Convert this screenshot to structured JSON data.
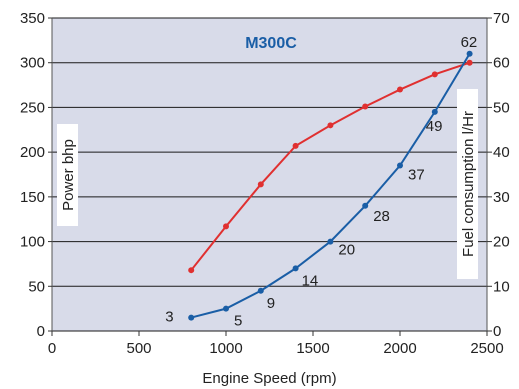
{
  "chart_data": {
    "type": "line",
    "title": "M300C",
    "xlabel": "Engine Speed (rpm)",
    "ylabel": "Power bhp",
    "y2label": "Fuel consumption l/Hr",
    "xlim": [
      0,
      2500
    ],
    "ylim": [
      0,
      350
    ],
    "y2lim": [
      0,
      70
    ],
    "x_ticks": [
      "0",
      "500",
      "1000",
      "1500",
      "2000",
      "2500"
    ],
    "y_ticks": [
      "0",
      "50",
      "100",
      "150",
      "200",
      "250",
      "300",
      "350"
    ],
    "y2_ticks": [
      "0",
      "10",
      "20",
      "30",
      "40",
      "50",
      "60",
      "70"
    ],
    "grid": "horizontal",
    "series": [
      {
        "axis": "left",
        "color": "#e03030",
        "x": [
          800,
          1000,
          1200,
          1400,
          1600,
          1800,
          2000,
          2200,
          2400
        ],
        "values": [
          68,
          117,
          164,
          207,
          230,
          251,
          270,
          287,
          300
        ]
      },
      {
        "axis": "right",
        "color": "#1a5ea6",
        "x": [
          800,
          1000,
          1200,
          1400,
          1600,
          1800,
          2000,
          2200,
          2400
        ],
        "values": [
          3,
          5,
          9,
          14,
          20,
          28,
          37,
          49,
          62
        ],
        "labels": [
          "3",
          "5",
          "9",
          "14",
          "20",
          "28",
          "37",
          "49",
          "62"
        ]
      }
    ],
    "colors": {
      "plot_background": "#d8dbe9",
      "grid": "#1a1a1a",
      "title": "#1a5ea6"
    }
  }
}
